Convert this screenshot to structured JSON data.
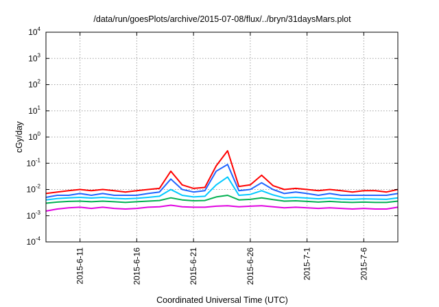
{
  "chart_data": {
    "type": "line",
    "title": "/data/run/goesPlots/archive/2015-07-08/flux/../bryn/31daysMars.plot",
    "xlabel": "Coordinated Universal Time (UTC)",
    "ylabel": "cGy/day",
    "y_scale": "log",
    "ylim": [
      0.0001,
      10000
    ],
    "xlim": [
      "2015-06-08",
      "2015-07-09"
    ],
    "y_ticks": [
      {
        "base": "10",
        "exp": "-4"
      },
      {
        "base": "10",
        "exp": "-3"
      },
      {
        "base": "10",
        "exp": "-2"
      },
      {
        "base": "10",
        "exp": "-1"
      },
      {
        "base": "10",
        "exp": "0"
      },
      {
        "base": "10",
        "exp": "1"
      },
      {
        "base": "10",
        "exp": "2"
      },
      {
        "base": "10",
        "exp": "3"
      },
      {
        "base": "10",
        "exp": "4"
      }
    ],
    "x_ticks": [
      "2015-6-11",
      "2015-6-16",
      "2015-6-21",
      "2015-6-26",
      "2015-7-1",
      "2015-7-6"
    ],
    "grid": true,
    "series": [
      {
        "color": "#ff0000",
        "x": [
          "2015-06-08",
          "2015-06-09",
          "2015-06-10",
          "2015-06-11",
          "2015-06-12",
          "2015-06-13",
          "2015-06-14",
          "2015-06-15",
          "2015-06-16",
          "2015-06-17",
          "2015-06-18",
          "2015-06-19",
          "2015-06-20",
          "2015-06-21",
          "2015-06-22",
          "2015-06-23",
          "2015-06-24",
          "2015-06-25",
          "2015-06-26",
          "2015-06-27",
          "2015-06-28",
          "2015-06-29",
          "2015-06-30",
          "2015-07-01",
          "2015-07-02",
          "2015-07-03",
          "2015-07-04",
          "2015-07-05",
          "2015-07-06",
          "2015-07-07",
          "2015-07-08",
          "2015-07-09"
        ],
        "values": [
          0.007,
          0.008,
          0.009,
          0.01,
          0.009,
          0.01,
          0.009,
          0.008,
          0.009,
          0.01,
          0.011,
          0.05,
          0.015,
          0.011,
          0.012,
          0.08,
          0.3,
          0.013,
          0.015,
          0.035,
          0.014,
          0.01,
          0.011,
          0.01,
          0.009,
          0.01,
          0.009,
          0.008,
          0.009,
          0.009,
          0.008,
          0.01
        ]
      },
      {
        "color": "#1e64ff",
        "x": [
          "2015-06-08",
          "2015-06-09",
          "2015-06-10",
          "2015-06-11",
          "2015-06-12",
          "2015-06-13",
          "2015-06-14",
          "2015-06-15",
          "2015-06-16",
          "2015-06-17",
          "2015-06-18",
          "2015-06-19",
          "2015-06-20",
          "2015-06-21",
          "2015-06-22",
          "2015-06-23",
          "2015-06-24",
          "2015-06-25",
          "2015-06-26",
          "2015-06-27",
          "2015-06-28",
          "2015-06-29",
          "2015-06-30",
          "2015-07-01",
          "2015-07-02",
          "2015-07-03",
          "2015-07-04",
          "2015-07-05",
          "2015-07-06",
          "2015-07-07",
          "2015-07-08",
          "2015-07-09"
        ],
        "values": [
          0.005,
          0.006,
          0.006,
          0.007,
          0.006,
          0.007,
          0.006,
          0.006,
          0.006,
          0.007,
          0.008,
          0.025,
          0.01,
          0.008,
          0.009,
          0.05,
          0.09,
          0.009,
          0.01,
          0.018,
          0.01,
          0.007,
          0.008,
          0.007,
          0.006,
          0.007,
          0.006,
          0.006,
          0.006,
          0.006,
          0.006,
          0.007
        ]
      },
      {
        "color": "#00c8ff",
        "x": [
          "2015-06-08",
          "2015-06-09",
          "2015-06-10",
          "2015-06-11",
          "2015-06-12",
          "2015-06-13",
          "2015-06-14",
          "2015-06-15",
          "2015-06-16",
          "2015-06-17",
          "2015-06-18",
          "2015-06-19",
          "2015-06-20",
          "2015-06-21",
          "2015-06-22",
          "2015-06-23",
          "2015-06-24",
          "2015-06-25",
          "2015-06-26",
          "2015-06-27",
          "2015-06-28",
          "2015-06-29",
          "2015-06-30",
          "2015-07-01",
          "2015-07-02",
          "2015-07-03",
          "2015-07-04",
          "2015-07-05",
          "2015-07-06",
          "2015-07-07",
          "2015-07-08",
          "2015-07-09"
        ],
        "values": [
          0.004,
          0.0045,
          0.0048,
          0.005,
          0.0047,
          0.005,
          0.0046,
          0.0044,
          0.0046,
          0.005,
          0.0055,
          0.01,
          0.006,
          0.0052,
          0.0055,
          0.015,
          0.03,
          0.006,
          0.0065,
          0.009,
          0.0062,
          0.0048,
          0.005,
          0.0047,
          0.0044,
          0.0047,
          0.0043,
          0.0042,
          0.0044,
          0.0043,
          0.0042,
          0.0048
        ]
      },
      {
        "color": "#00b050",
        "x": [
          "2015-06-08",
          "2015-06-09",
          "2015-06-10",
          "2015-06-11",
          "2015-06-12",
          "2015-06-13",
          "2015-06-14",
          "2015-06-15",
          "2015-06-16",
          "2015-06-17",
          "2015-06-18",
          "2015-06-19",
          "2015-06-20",
          "2015-06-21",
          "2015-06-22",
          "2015-06-23",
          "2015-06-24",
          "2015-06-25",
          "2015-06-26",
          "2015-06-27",
          "2015-06-28",
          "2015-06-29",
          "2015-06-30",
          "2015-07-01",
          "2015-07-02",
          "2015-07-03",
          "2015-07-04",
          "2015-07-05",
          "2015-07-06",
          "2015-07-07",
          "2015-07-08",
          "2015-07-09"
        ],
        "values": [
          0.003,
          0.0033,
          0.0035,
          0.0036,
          0.0034,
          0.0036,
          0.0034,
          0.0032,
          0.0034,
          0.0036,
          0.0038,
          0.0048,
          0.004,
          0.0037,
          0.0038,
          0.0052,
          0.006,
          0.004,
          0.0042,
          0.0048,
          0.0041,
          0.0036,
          0.0037,
          0.0035,
          0.0033,
          0.0035,
          0.0033,
          0.0032,
          0.0033,
          0.0032,
          0.0032,
          0.0036
        ]
      },
      {
        "color": "#e000e0",
        "x": [
          "2015-06-08",
          "2015-06-09",
          "2015-06-10",
          "2015-06-11",
          "2015-06-12",
          "2015-06-13",
          "2015-06-14",
          "2015-06-15",
          "2015-06-16",
          "2015-06-17",
          "2015-06-18",
          "2015-06-19",
          "2015-06-20",
          "2015-06-21",
          "2015-06-22",
          "2015-06-23",
          "2015-06-24",
          "2015-06-25",
          "2015-06-26",
          "2015-06-27",
          "2015-06-28",
          "2015-06-29",
          "2015-06-30",
          "2015-07-01",
          "2015-07-02",
          "2015-07-03",
          "2015-07-04",
          "2015-07-05",
          "2015-07-06",
          "2015-07-07",
          "2015-07-08",
          "2015-07-09"
        ],
        "values": [
          0.0015,
          0.0018,
          0.002,
          0.0021,
          0.0019,
          0.0021,
          0.0019,
          0.0018,
          0.0019,
          0.0021,
          0.0022,
          0.0025,
          0.0022,
          0.0021,
          0.0021,
          0.0023,
          0.0024,
          0.0022,
          0.0023,
          0.0024,
          0.0022,
          0.002,
          0.0021,
          0.002,
          0.0019,
          0.002,
          0.0019,
          0.0018,
          0.0019,
          0.0018,
          0.0018,
          0.0021
        ]
      }
    ]
  }
}
